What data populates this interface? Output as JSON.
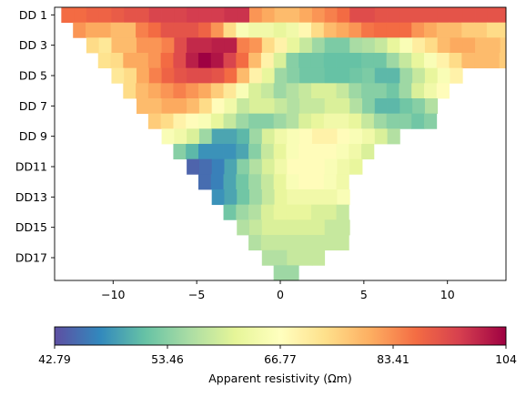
{
  "chart_data": {
    "type": "heatmap",
    "title": "",
    "xlabel": "",
    "ylabel": "",
    "x_range": [
      -13.5,
      13.5
    ],
    "x_ticks": [
      -10,
      -5,
      0,
      5,
      10
    ],
    "x_tick_labels": [
      "−10",
      "−5",
      "0",
      "5",
      "10"
    ],
    "y_tick_labels": [
      "DD 1",
      "DD 3",
      "DD 5",
      "DD 7",
      "DD 9",
      "DD11",
      "DD13",
      "DD15",
      "DD17"
    ],
    "y_tick_levels": [
      1,
      3,
      5,
      7,
      9,
      11,
      13,
      15,
      17
    ],
    "cell_width": 0.75,
    "num_levels": 18,
    "colormap": "Spectral_r",
    "vmin": 42.79,
    "vmax": 104,
    "colorbar": {
      "tick_values": [
        42.79,
        53.46,
        66.77,
        83.41,
        104
      ],
      "tick_labels": [
        "42.79",
        "53.46",
        "66.77",
        "83.41",
        "104"
      ],
      "label": "Apparent resistivity (Ωm)"
    },
    "levels": [
      {
        "level": 1,
        "x_start": -13.1,
        "values": [
          92,
          92,
          93,
          93,
          94,
          95,
          95,
          97,
          97,
          97,
          98,
          98,
          98,
          99,
          99,
          88,
          86,
          84,
          84,
          86,
          88,
          90,
          92,
          96,
          96,
          95,
          95,
          95,
          95,
          95,
          95,
          95,
          95,
          95,
          95,
          95
        ]
      },
      {
        "level": 2,
        "x_start": -12.4,
        "values": [
          88,
          86,
          86,
          84,
          84,
          90,
          92,
          95,
          95,
          95,
          93,
          88,
          80,
          72,
          70,
          70,
          68,
          70,
          75,
          80,
          84,
          86,
          88,
          91,
          92,
          92,
          92,
          88,
          86,
          84,
          84,
          82,
          82,
          80,
          80
        ]
      },
      {
        "level": 3,
        "x_start": -11.6,
        "values": [
          80,
          78,
          84,
          84,
          88,
          88,
          90,
          96,
          100,
          100,
          101,
          101,
          90,
          88,
          80,
          76,
          68,
          64,
          60,
          57,
          57,
          61,
          62,
          64,
          68,
          72,
          77,
          80,
          84,
          86,
          86,
          84,
          84,
          82,
          82
        ]
      },
      {
        "level": 4,
        "x_start": -10.9,
        "values": [
          79,
          80,
          86,
          86,
          88,
          92,
          96,
          101,
          104,
          102,
          97,
          92,
          84,
          76,
          66,
          58,
          56,
          56,
          55,
          55,
          55,
          56,
          56,
          60,
          64,
          68,
          72,
          76,
          80,
          84,
          84,
          84,
          82
        ]
      },
      {
        "level": 5,
        "x_start": -10.1,
        "values": [
          78,
          80,
          86,
          90,
          93,
          95,
          96,
          96,
          95,
          92,
          84,
          76,
          68,
          60,
          58,
          56,
          56,
          55,
          55,
          56,
          57,
          54,
          54,
          60,
          64,
          68,
          72,
          76
        ]
      },
      {
        "level": 6,
        "x_start": -9.4,
        "values": [
          80,
          84,
          86,
          88,
          90,
          88,
          86,
          82,
          78,
          72,
          66,
          64,
          60,
          62,
          64,
          66,
          66,
          64,
          60,
          58,
          58,
          56,
          60,
          66,
          70,
          74
        ]
      },
      {
        "level": 7,
        "x_start": -8.6,
        "values": [
          84,
          84,
          86,
          86,
          84,
          80,
          74,
          70,
          64,
          66,
          66,
          64,
          62,
          64,
          64,
          66,
          66,
          62,
          58,
          54,
          54,
          56,
          58,
          62
        ]
      },
      {
        "level": 8,
        "x_start": -7.9,
        "values": [
          82,
          80,
          76,
          74,
          72,
          68,
          64,
          60,
          58,
          58,
          60,
          62,
          66,
          68,
          70,
          70,
          68,
          64,
          60,
          58,
          58,
          56,
          58
        ]
      },
      {
        "level": 9,
        "x_start": -7.1,
        "values": [
          72,
          70,
          66,
          60,
          52,
          52,
          54,
          60,
          66,
          70,
          72,
          74,
          76,
          76,
          74,
          72,
          70,
          66,
          62
        ]
      },
      {
        "level": 10,
        "x_start": -6.4,
        "values": [
          58,
          54,
          50,
          50,
          50,
          52,
          58,
          64,
          68,
          72,
          74,
          74,
          74,
          72,
          70,
          66
        ]
      },
      {
        "level": 11,
        "x_start": -5.6,
        "values": [
          45,
          46,
          48,
          52,
          58,
          62,
          66,
          70,
          74,
          74,
          74,
          72,
          70,
          68
        ]
      },
      {
        "level": 12,
        "x_start": -4.9,
        "values": [
          46,
          48,
          52,
          56,
          60,
          64,
          68,
          72,
          74,
          74,
          72,
          70
        ]
      },
      {
        "level": 13,
        "x_start": -4.1,
        "values": [
          50,
          52,
          56,
          60,
          64,
          68,
          70,
          70,
          70,
          70,
          72
        ]
      },
      {
        "level": 14,
        "x_start": -3.4,
        "values": [
          56,
          60,
          62,
          66,
          68,
          68,
          68,
          66,
          66,
          64
        ]
      },
      {
        "level": 15,
        "x_start": -2.6,
        "values": [
          62,
          64,
          66,
          66,
          66,
          66,
          66,
          64,
          64
        ]
      },
      {
        "level": 16,
        "x_start": -1.9,
        "values": [
          62,
          64,
          64,
          64,
          64,
          64,
          64,
          64
        ]
      },
      {
        "level": 17,
        "x_start": -1.1,
        "values": [
          62,
          62,
          64,
          64,
          64
        ]
      },
      {
        "level": 18,
        "x_start": -0.4,
        "values": [
          60,
          60
        ]
      }
    ]
  }
}
